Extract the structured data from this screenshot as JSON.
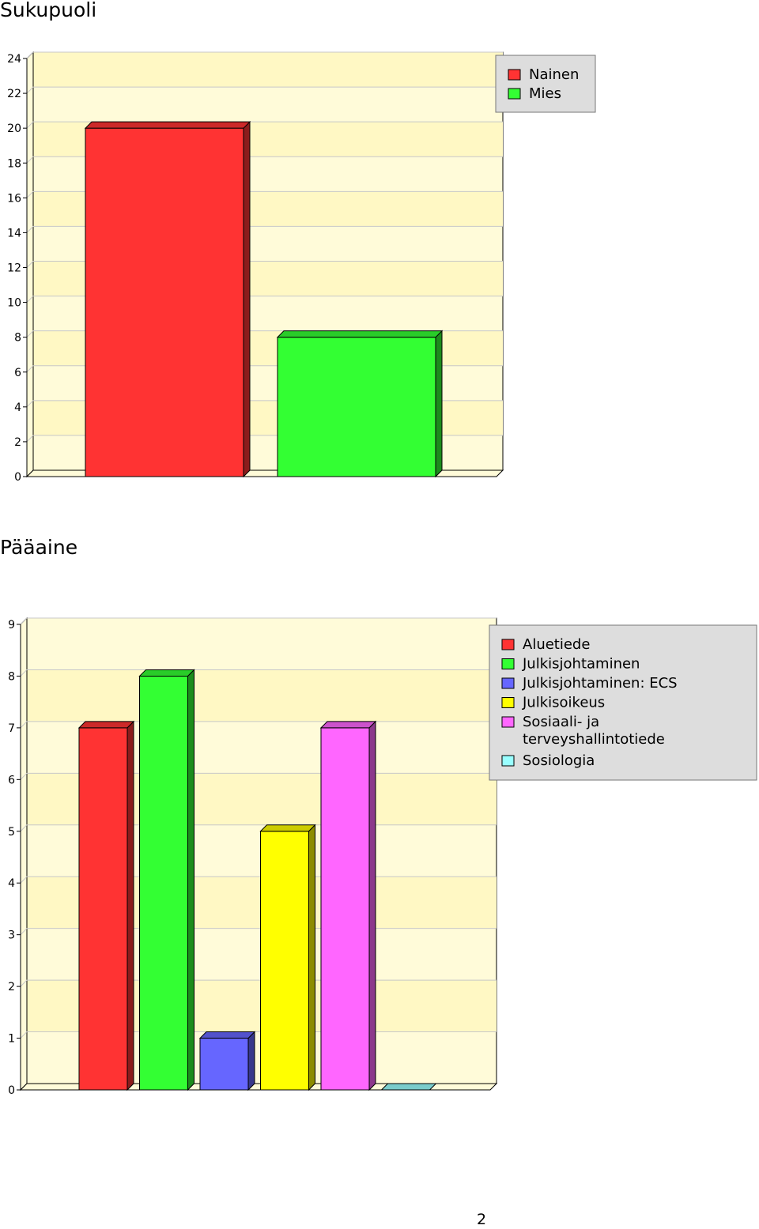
{
  "page_number": "2",
  "chart_data": [
    {
      "type": "bar",
      "title": "Sukupuoli",
      "categories": [
        "Nainen",
        "Mies"
      ],
      "values": [
        20,
        8
      ],
      "colors": [
        "#ff3333",
        "#33ff33"
      ],
      "legend": [
        "Nainen",
        "Mies"
      ],
      "legend_position": "top-right",
      "ylim": [
        0,
        24
      ],
      "yticks": [
        0,
        2,
        4,
        6,
        8,
        10,
        12,
        14,
        16,
        18,
        20,
        22,
        24
      ],
      "grid": true
    },
    {
      "type": "bar",
      "title": "Pääaine",
      "categories": [
        "Aluetiede",
        "Julkisjohtaminen",
        "Julkisjohtaminen: ECS",
        "Julkisoikeus",
        "Sosiaali- ja terveyshallintotiede",
        "Sosiologia"
      ],
      "values": [
        7,
        8,
        1,
        5,
        7,
        0
      ],
      "colors": [
        "#ff3333",
        "#33ff33",
        "#6666ff",
        "#ffff00",
        "#ff66ff",
        "#99ffff"
      ],
      "legend": [
        [
          "Aluetiede"
        ],
        [
          "Julkisjohtaminen"
        ],
        [
          "Julkisjohtaminen: ECS"
        ],
        [
          "Julkisoikeus"
        ],
        [
          "Sosiaali- ja",
          "terveyshallintotiede"
        ],
        [
          "Sosiologia"
        ]
      ],
      "legend_position": "top-right",
      "ylim": [
        0,
        9
      ],
      "yticks": [
        0,
        1,
        2,
        3,
        4,
        5,
        6,
        7,
        8,
        9
      ],
      "grid": true
    }
  ]
}
